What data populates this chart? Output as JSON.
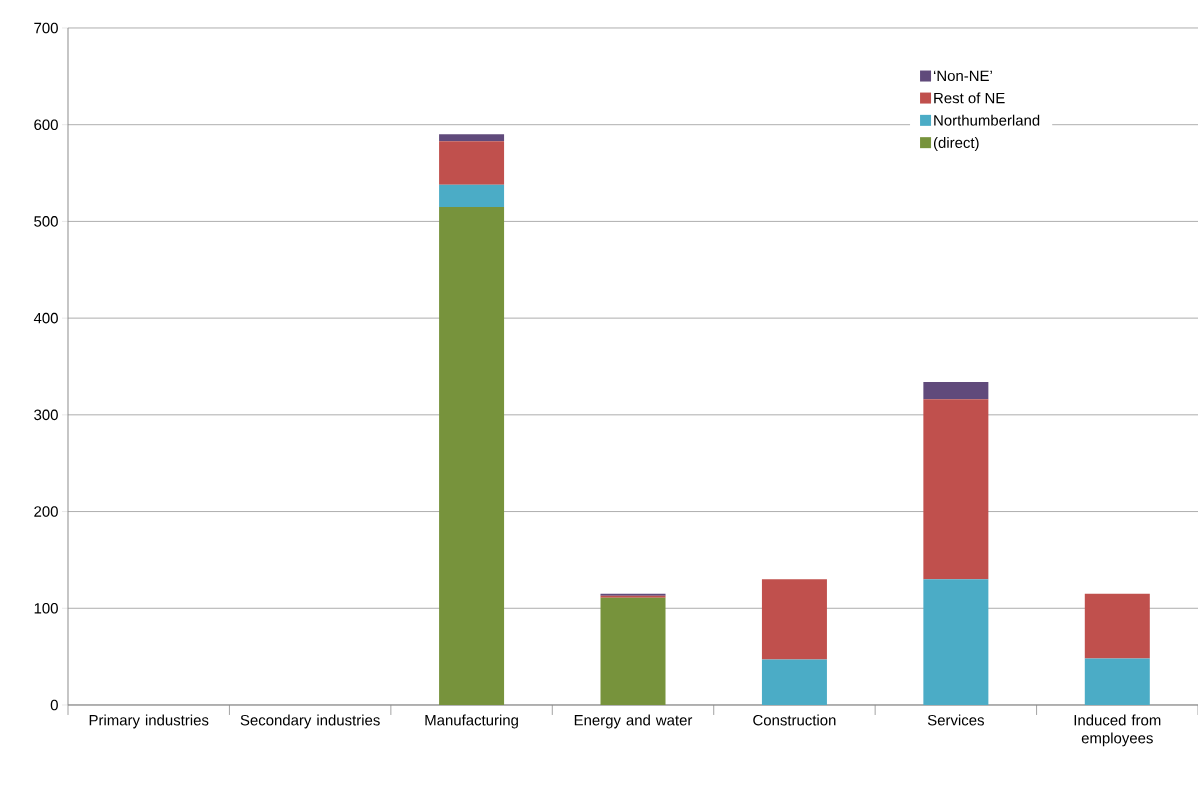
{
  "chart_data": {
    "type": "bar",
    "stacked": true,
    "categories": [
      "Primary industries",
      "Secondary industries",
      "Manufacturing",
      "Energy and water",
      "Construction",
      "Services",
      "Induced from employees"
    ],
    "series": [
      {
        "name": "(direct)",
        "color": "#77933c",
        "values": [
          0,
          0,
          515,
          111,
          0,
          0,
          0
        ]
      },
      {
        "name": "Northumberland",
        "color": "#4bacc6",
        "values": [
          0,
          0,
          23,
          0,
          47,
          130,
          48
        ]
      },
      {
        "name": "Rest of NE",
        "color": "#c0504d",
        "values": [
          0,
          0,
          45,
          2,
          83,
          186,
          67
        ]
      },
      {
        "name": "‘Non-NE’",
        "color": "#604a7b",
        "values": [
          0,
          0,
          7,
          2,
          0,
          18,
          0
        ]
      }
    ],
    "ylim": [
      0,
      700
    ],
    "yticks": [
      0,
      100,
      200,
      300,
      400,
      500,
      600,
      700
    ],
    "grid": "y",
    "legend": "top right"
  }
}
